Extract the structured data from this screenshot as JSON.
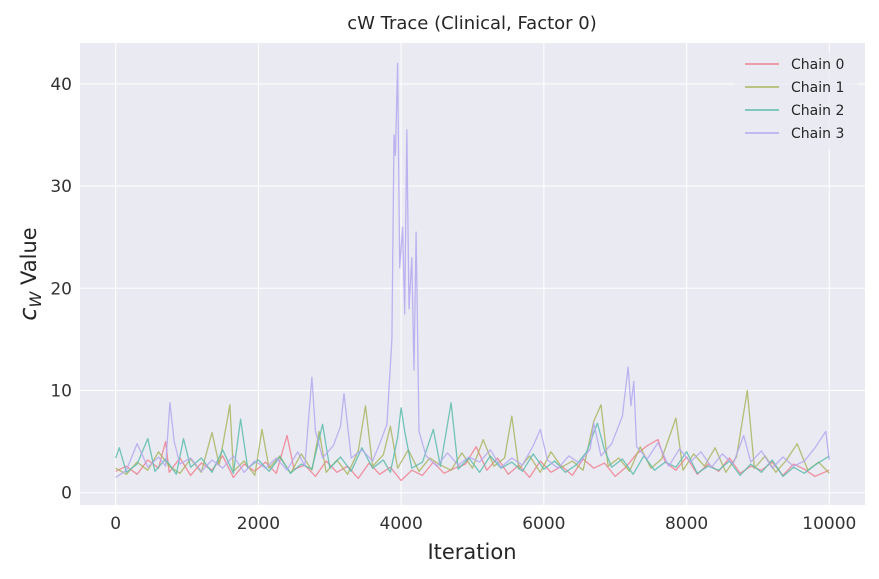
{
  "chart_data": {
    "type": "line",
    "title": "cW Trace (Clinical, Factor 0)",
    "xlabel": "Iteration",
    "ylabel_main": "c",
    "ylabel_sub": "W",
    "ylabel_rest": " Value",
    "xlim": [
      -500,
      10500
    ],
    "ylim": [
      -1.2,
      44
    ],
    "xticks": [
      0,
      2000,
      4000,
      6000,
      8000,
      10000
    ],
    "xtick_labels": [
      "0",
      "2000",
      "4000",
      "6000",
      "8000",
      "10000"
    ],
    "yticks": [
      0,
      10,
      20,
      30,
      40
    ],
    "ytick_labels": [
      "0",
      "10",
      "20",
      "30",
      "40"
    ],
    "grid": true,
    "legend_position": "top-right",
    "colors": {
      "background": "#eaeaf2",
      "grid": "#ffffff"
    },
    "series": [
      {
        "name": "Chain 0",
        "color": "#f0808f",
        "points": [
          [
            0,
            2.1
          ],
          [
            150,
            2.6
          ],
          [
            300,
            1.8
          ],
          [
            450,
            3.2
          ],
          [
            600,
            2.4
          ],
          [
            700,
            5.0
          ],
          [
            750,
            2.0
          ],
          [
            900,
            3.4
          ],
          [
            1050,
            1.7
          ],
          [
            1200,
            2.9
          ],
          [
            1350,
            2.2
          ],
          [
            1500,
            3.6
          ],
          [
            1650,
            1.5
          ],
          [
            1800,
            2.8
          ],
          [
            1950,
            2.1
          ],
          [
            2100,
            3.0
          ],
          [
            2250,
            1.9
          ],
          [
            2400,
            5.6
          ],
          [
            2500,
            2.3
          ],
          [
            2650,
            2.7
          ],
          [
            2800,
            1.6
          ],
          [
            2950,
            3.1
          ],
          [
            3100,
            2.0
          ],
          [
            3250,
            2.6
          ],
          [
            3400,
            1.4
          ],
          [
            3550,
            2.9
          ],
          [
            3700,
            1.8
          ],
          [
            3850,
            2.5
          ],
          [
            4000,
            1.2
          ],
          [
            4150,
            2.2
          ],
          [
            4300,
            1.7
          ],
          [
            4450,
            3.0
          ],
          [
            4600,
            1.9
          ],
          [
            4750,
            2.4
          ],
          [
            4900,
            2.8
          ],
          [
            5050,
            4.5
          ],
          [
            5200,
            2.2
          ],
          [
            5350,
            3.4
          ],
          [
            5500,
            1.8
          ],
          [
            5650,
            2.7
          ],
          [
            5800,
            1.5
          ],
          [
            5950,
            3.1
          ],
          [
            6100,
            2.0
          ],
          [
            6250,
            2.6
          ],
          [
            6400,
            1.7
          ],
          [
            6550,
            3.3
          ],
          [
            6700,
            2.4
          ],
          [
            6850,
            2.9
          ],
          [
            7000,
            1.6
          ],
          [
            7150,
            2.5
          ],
          [
            7300,
            3.8
          ],
          [
            7450,
            4.6
          ],
          [
            7600,
            5.2
          ],
          [
            7700,
            3.0
          ],
          [
            7850,
            2.2
          ],
          [
            8000,
            3.5
          ],
          [
            8150,
            1.8
          ],
          [
            8300,
            2.8
          ],
          [
            8450,
            2.1
          ],
          [
            8600,
            3.4
          ],
          [
            8750,
            1.9
          ],
          [
            8900,
            2.6
          ],
          [
            9050,
            2.2
          ],
          [
            9200,
            3.0
          ],
          [
            9350,
            1.7
          ],
          [
            9500,
            2.8
          ],
          [
            9650,
            2.3
          ],
          [
            9800,
            1.6
          ],
          [
            10000,
            2.2
          ]
        ]
      },
      {
        "name": "Chain 1",
        "color": "#a9b55f",
        "points": [
          [
            0,
            2.4
          ],
          [
            150,
            1.8
          ],
          [
            300,
            3.0
          ],
          [
            450,
            2.2
          ],
          [
            600,
            4.0
          ],
          [
            750,
            2.6
          ],
          [
            900,
            1.9
          ],
          [
            1050,
            3.3
          ],
          [
            1200,
            2.0
          ],
          [
            1350,
            5.9
          ],
          [
            1450,
            2.7
          ],
          [
            1600,
            8.6
          ],
          [
            1650,
            2.1
          ],
          [
            1800,
            3.1
          ],
          [
            1950,
            1.7
          ],
          [
            2050,
            6.2
          ],
          [
            2150,
            2.4
          ],
          [
            2300,
            3.6
          ],
          [
            2450,
            1.9
          ],
          [
            2600,
            3.8
          ],
          [
            2750,
            2.2
          ],
          [
            2850,
            6.0
          ],
          [
            2950,
            2.0
          ],
          [
            3100,
            3.2
          ],
          [
            3250,
            1.8
          ],
          [
            3400,
            4.1
          ],
          [
            3500,
            8.5
          ],
          [
            3600,
            2.6
          ],
          [
            3750,
            3.7
          ],
          [
            3850,
            6.5
          ],
          [
            3950,
            2.4
          ],
          [
            4100,
            4.2
          ],
          [
            4250,
            2.1
          ],
          [
            4400,
            3.4
          ],
          [
            4550,
            2.7
          ],
          [
            4700,
            2.2
          ],
          [
            4850,
            3.9
          ],
          [
            5000,
            2.4
          ],
          [
            5150,
            5.2
          ],
          [
            5300,
            2.6
          ],
          [
            5450,
            3.4
          ],
          [
            5550,
            7.5
          ],
          [
            5650,
            2.3
          ],
          [
            5800,
            3.6
          ],
          [
            5950,
            2.0
          ],
          [
            6100,
            4.0
          ],
          [
            6250,
            2.5
          ],
          [
            6400,
            3.1
          ],
          [
            6550,
            2.2
          ],
          [
            6700,
            7.0
          ],
          [
            6800,
            8.6
          ],
          [
            6900,
            2.6
          ],
          [
            7050,
            3.4
          ],
          [
            7200,
            2.1
          ],
          [
            7350,
            4.5
          ],
          [
            7500,
            2.4
          ],
          [
            7650,
            3.3
          ],
          [
            7850,
            7.3
          ],
          [
            7950,
            2.2
          ],
          [
            8100,
            3.8
          ],
          [
            8250,
            2.6
          ],
          [
            8400,
            4.4
          ],
          [
            8550,
            2.0
          ],
          [
            8700,
            3.5
          ],
          [
            8850,
            10.0
          ],
          [
            8950,
            2.4
          ],
          [
            9100,
            3.6
          ],
          [
            9250,
            2.0
          ],
          [
            9400,
            3.2
          ],
          [
            9550,
            4.8
          ],
          [
            9700,
            2.2
          ],
          [
            9850,
            3.0
          ],
          [
            10000,
            1.9
          ]
        ]
      },
      {
        "name": "Chain 2",
        "color": "#5cbcae",
        "points": [
          [
            0,
            3.4
          ],
          [
            50,
            4.4
          ],
          [
            150,
            2.0
          ],
          [
            300,
            2.8
          ],
          [
            450,
            5.3
          ],
          [
            550,
            2.1
          ],
          [
            700,
            3.3
          ],
          [
            850,
            1.8
          ],
          [
            950,
            5.3
          ],
          [
            1050,
            2.5
          ],
          [
            1200,
            3.4
          ],
          [
            1350,
            2.0
          ],
          [
            1500,
            4.2
          ],
          [
            1650,
            1.9
          ],
          [
            1750,
            7.2
          ],
          [
            1850,
            2.4
          ],
          [
            2000,
            3.2
          ],
          [
            2150,
            2.1
          ],
          [
            2300,
            3.5
          ],
          [
            2450,
            1.9
          ],
          [
            2600,
            2.8
          ],
          [
            2750,
            2.3
          ],
          [
            2900,
            6.7
          ],
          [
            3000,
            2.4
          ],
          [
            3150,
            3.5
          ],
          [
            3300,
            2.1
          ],
          [
            3450,
            4.4
          ],
          [
            3600,
            2.4
          ],
          [
            3750,
            3.2
          ],
          [
            3850,
            2.0
          ],
          [
            3950,
            5.4
          ],
          [
            4000,
            8.3
          ],
          [
            4050,
            6.0
          ],
          [
            4150,
            2.4
          ],
          [
            4300,
            3.0
          ],
          [
            4450,
            6.2
          ],
          [
            4550,
            2.6
          ],
          [
            4700,
            8.8
          ],
          [
            4800,
            2.3
          ],
          [
            4950,
            3.4
          ],
          [
            5100,
            2.0
          ],
          [
            5250,
            3.6
          ],
          [
            5400,
            2.4
          ],
          [
            5550,
            3.0
          ],
          [
            5700,
            2.1
          ],
          [
            5850,
            3.8
          ],
          [
            6000,
            2.3
          ],
          [
            6150,
            3.1
          ],
          [
            6300,
            2.0
          ],
          [
            6450,
            2.7
          ],
          [
            6600,
            4.0
          ],
          [
            6750,
            6.8
          ],
          [
            6850,
            4.2
          ],
          [
            6950,
            2.5
          ],
          [
            7100,
            3.3
          ],
          [
            7250,
            1.8
          ],
          [
            7400,
            3.6
          ],
          [
            7550,
            2.2
          ],
          [
            7700,
            3.0
          ],
          [
            7850,
            2.5
          ],
          [
            8000,
            4.0
          ],
          [
            8150,
            1.9
          ],
          [
            8300,
            2.6
          ],
          [
            8450,
            2.2
          ],
          [
            8600,
            3.1
          ],
          [
            8750,
            1.7
          ],
          [
            8900,
            2.8
          ],
          [
            9050,
            2.0
          ],
          [
            9200,
            3.2
          ],
          [
            9350,
            1.6
          ],
          [
            9500,
            2.5
          ],
          [
            9650,
            1.9
          ],
          [
            9800,
            2.7
          ],
          [
            10000,
            3.6
          ]
        ]
      },
      {
        "name": "Chain 3",
        "color": "#b4a8f1",
        "points": [
          [
            0,
            1.5
          ],
          [
            150,
            2.2
          ],
          [
            300,
            4.8
          ],
          [
            450,
            2.5
          ],
          [
            600,
            3.5
          ],
          [
            700,
            2.6
          ],
          [
            760,
            8.8
          ],
          [
            820,
            5.0
          ],
          [
            900,
            2.8
          ],
          [
            1050,
            3.4
          ],
          [
            1200,
            2.1
          ],
          [
            1350,
            3.2
          ],
          [
            1500,
            2.4
          ],
          [
            1650,
            3.6
          ],
          [
            1800,
            2.0
          ],
          [
            1950,
            3.1
          ],
          [
            2100,
            2.4
          ],
          [
            2250,
            3.4
          ],
          [
            2400,
            2.2
          ],
          [
            2550,
            4.0
          ],
          [
            2650,
            2.6
          ],
          [
            2750,
            11.3
          ],
          [
            2800,
            6.0
          ],
          [
            2900,
            3.4
          ],
          [
            3050,
            4.6
          ],
          [
            3150,
            6.5
          ],
          [
            3200,
            9.7
          ],
          [
            3300,
            3.4
          ],
          [
            3450,
            4.2
          ],
          [
            3600,
            3.1
          ],
          [
            3700,
            4.8
          ],
          [
            3800,
            6.7
          ],
          [
            3870,
            15.0
          ],
          [
            3900,
            35.0
          ],
          [
            3920,
            33.0
          ],
          [
            3950,
            42.0
          ],
          [
            3980,
            22.0
          ],
          [
            4020,
            26.0
          ],
          [
            4050,
            17.5
          ],
          [
            4080,
            35.5
          ],
          [
            4110,
            18.0
          ],
          [
            4150,
            23.0
          ],
          [
            4180,
            12.0
          ],
          [
            4210,
            25.5
          ],
          [
            4250,
            6.0
          ],
          [
            4350,
            3.6
          ],
          [
            4500,
            2.6
          ],
          [
            4650,
            3.9
          ],
          [
            4800,
            2.7
          ],
          [
            4950,
            3.5
          ],
          [
            5100,
            3.0
          ],
          [
            5250,
            4.2
          ],
          [
            5400,
            2.5
          ],
          [
            5550,
            3.4
          ],
          [
            5700,
            2.7
          ],
          [
            5850,
            4.6
          ],
          [
            5950,
            6.2
          ],
          [
            6050,
            3.2
          ],
          [
            6200,
            2.4
          ],
          [
            6350,
            3.6
          ],
          [
            6500,
            2.9
          ],
          [
            6650,
            4.3
          ],
          [
            6700,
            6.8
          ],
          [
            6800,
            3.6
          ],
          [
            6950,
            4.8
          ],
          [
            7100,
            7.5
          ],
          [
            7180,
            12.3
          ],
          [
            7220,
            8.5
          ],
          [
            7260,
            10.9
          ],
          [
            7300,
            4.5
          ],
          [
            7450,
            3.3
          ],
          [
            7600,
            4.9
          ],
          [
            7750,
            2.6
          ],
          [
            7900,
            4.3
          ],
          [
            8050,
            3.0
          ],
          [
            8200,
            4.0
          ],
          [
            8350,
            2.5
          ],
          [
            8500,
            3.8
          ],
          [
            8650,
            2.8
          ],
          [
            8800,
            5.6
          ],
          [
            8900,
            3.0
          ],
          [
            9050,
            4.1
          ],
          [
            9200,
            2.4
          ],
          [
            9350,
            3.5
          ],
          [
            9500,
            2.6
          ],
          [
            9650,
            3.1
          ],
          [
            9800,
            4.4
          ],
          [
            9950,
            6.0
          ],
          [
            10000,
            3.2
          ]
        ]
      }
    ]
  }
}
